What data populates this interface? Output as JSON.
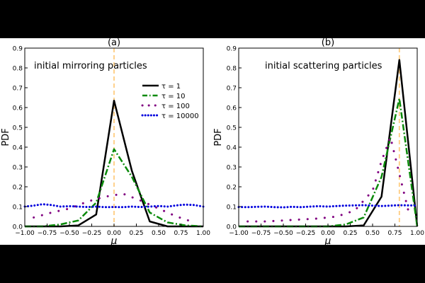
{
  "chart_data": [
    {
      "type": "line",
      "title": "(a)",
      "annotation": "initial mirroring particles",
      "xlabel": "μ",
      "ylabel": "PDF",
      "xlim": [
        -1.0,
        1.0
      ],
      "ylim": [
        0.0,
        0.9
      ],
      "x_ticks": [
        "−1.00",
        "−0.75",
        "−0.50",
        "−0.25",
        "0.00",
        "0.25",
        "0.50",
        "0.75",
        "1.00"
      ],
      "y_ticks": [
        "0.0",
        "0.1",
        "0.2",
        "0.3",
        "0.4",
        "0.5",
        "0.6",
        "0.7",
        "0.8",
        "0.9"
      ],
      "vline": {
        "x": 0.0,
        "color": "#ffcc80",
        "style": "dashed"
      },
      "legend": {
        "placement": "right",
        "entries": [
          "τ = 1",
          "τ = 10",
          "τ = 100",
          "τ = 10000"
        ]
      },
      "series": [
        {
          "name": "τ = 1",
          "color": "#000000",
          "style": "solid",
          "x": [
            -1.0,
            -0.6,
            -0.4,
            -0.2,
            0.0,
            0.2,
            0.4,
            0.6,
            1.0
          ],
          "y": [
            0.0,
            0.0,
            0.005,
            0.06,
            0.635,
            0.28,
            0.025,
            0.0,
            0.0
          ]
        },
        {
          "name": "τ = 10",
          "color": "#0a8a0a",
          "style": "dashdot",
          "x": [
            -1.0,
            -0.8,
            -0.6,
            -0.4,
            -0.2,
            0.0,
            0.2,
            0.4,
            0.6,
            0.8,
            1.0
          ],
          "y": [
            0.0,
            0.0,
            0.01,
            0.03,
            0.12,
            0.39,
            0.25,
            0.07,
            0.02,
            0.005,
            0.0
          ]
        },
        {
          "name": "τ = 100",
          "color": "#800080",
          "style": "dotted",
          "x": [
            -0.9,
            -0.7,
            -0.5,
            -0.3,
            -0.1,
            0.1,
            0.3,
            0.5,
            0.7,
            0.9
          ],
          "y": [
            0.045,
            0.07,
            0.09,
            0.125,
            0.15,
            0.165,
            0.13,
            0.09,
            0.05,
            0.02
          ]
        },
        {
          "name": "τ = 10000",
          "color": "#0000dd",
          "style": "dotted",
          "x": [
            -1.0,
            -0.9,
            -0.8,
            -0.7,
            -0.6,
            -0.5,
            -0.4,
            -0.3,
            -0.2,
            -0.1,
            0.0,
            0.1,
            0.2,
            0.3,
            0.4,
            0.5,
            0.6,
            0.7,
            0.8,
            0.9,
            1.0
          ],
          "y": [
            0.1,
            0.105,
            0.112,
            0.108,
            0.1,
            0.102,
            0.1,
            0.098,
            0.1,
            0.097,
            0.098,
            0.097,
            0.1,
            0.098,
            0.1,
            0.103,
            0.1,
            0.106,
            0.11,
            0.108,
            0.1
          ]
        }
      ]
    },
    {
      "type": "line",
      "title": "(b)",
      "annotation": "initial scattering particles",
      "xlabel": "μ",
      "ylabel": "PDF",
      "xlim": [
        -1.0,
        1.0
      ],
      "ylim": [
        0.0,
        0.9
      ],
      "x_ticks": [
        "−1.00",
        "−0.75",
        "−0.50",
        "−0.25",
        "0.00",
        "0.25",
        "0.50",
        "0.75",
        "1.00"
      ],
      "y_ticks": [
        "0.0",
        "0.1",
        "0.2",
        "0.3",
        "0.4",
        "0.5",
        "0.6",
        "0.7",
        "0.8",
        "0.9"
      ],
      "vline": {
        "x": 0.8,
        "color": "#ffcc80",
        "style": "dashed"
      },
      "series": [
        {
          "name": "τ = 1",
          "color": "#000000",
          "style": "solid",
          "x": [
            -1.0,
            0.2,
            0.4,
            0.6,
            0.8,
            1.0
          ],
          "y": [
            0.0,
            0.0,
            0.005,
            0.15,
            0.84,
            0.0
          ]
        },
        {
          "name": "τ = 10",
          "color": "#0a8a0a",
          "style": "dashdot",
          "x": [
            -1.0,
            0.0,
            0.2,
            0.4,
            0.6,
            0.8,
            1.0
          ],
          "y": [
            0.0,
            0.0,
            0.01,
            0.045,
            0.25,
            0.645,
            0.0
          ]
        },
        {
          "name": "τ = 100",
          "color": "#800080",
          "style": "dotted",
          "x": [
            -0.9,
            -0.7,
            -0.5,
            -0.3,
            -0.1,
            0.1,
            0.3,
            0.5,
            0.6,
            0.7,
            0.9
          ],
          "y": [
            0.025,
            0.025,
            0.03,
            0.035,
            0.04,
            0.05,
            0.08,
            0.18,
            0.33,
            0.45,
            0.08
          ]
        },
        {
          "name": "τ = 10000",
          "color": "#0000dd",
          "style": "dotted",
          "x": [
            -1.0,
            -0.9,
            -0.8,
            -0.7,
            -0.6,
            -0.5,
            -0.4,
            -0.3,
            -0.2,
            -0.1,
            0.0,
            0.1,
            0.2,
            0.3,
            0.4,
            0.5,
            0.6,
            0.7,
            0.8,
            0.9,
            1.0
          ],
          "y": [
            0.098,
            0.097,
            0.099,
            0.1,
            0.097,
            0.096,
            0.099,
            0.097,
            0.1,
            0.102,
            0.1,
            0.103,
            0.105,
            0.106,
            0.107,
            0.105,
            0.103,
            0.105,
            0.107,
            0.106,
            0.105
          ]
        }
      ]
    }
  ]
}
